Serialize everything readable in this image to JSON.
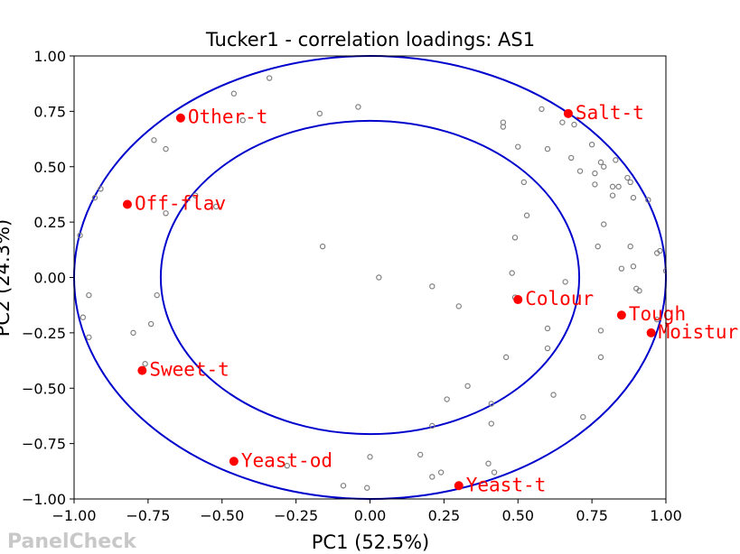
{
  "chart_data": {
    "type": "scatter",
    "title": "Tucker1 - correlation loadings: AS1",
    "xlabel": "PC1 (52.5%)",
    "ylabel": "PC2 (24.3%)",
    "xlim": [
      -1.0,
      1.0
    ],
    "ylim": [
      -1.0,
      1.0
    ],
    "x_ticks": [
      "−1.00",
      "−0.75",
      "−0.50",
      "−0.25",
      "0.00",
      "0.25",
      "0.50",
      "0.75",
      "1.00"
    ],
    "y_ticks": [
      "−1.00",
      "−0.75",
      "−0.50",
      "−0.25",
      "0.00",
      "0.25",
      "0.50",
      "0.75",
      "1.00"
    ],
    "x_tick_values": [
      -1.0,
      -0.75,
      -0.5,
      -0.25,
      0.0,
      0.25,
      0.5,
      0.75,
      1.0
    ],
    "y_tick_values": [
      -1.0,
      -0.75,
      -0.5,
      -0.25,
      0.0,
      0.25,
      0.5,
      0.75,
      1.0
    ],
    "circles": [
      {
        "radius": 1.0,
        "color": "#0000cc"
      },
      {
        "radius": 0.7071,
        "color": "#0000cc"
      }
    ],
    "grid": false,
    "highlighted": {
      "color": "#ff0000",
      "points": [
        {
          "label": "Other-t",
          "x": -0.64,
          "y": 0.72
        },
        {
          "label": "Salt-t",
          "x": 0.67,
          "y": 0.74
        },
        {
          "label": "Off-flav",
          "x": -0.82,
          "y": 0.33
        },
        {
          "label": "Colour",
          "x": 0.5,
          "y": -0.1
        },
        {
          "label": "Tough",
          "x": 0.85,
          "y": -0.17
        },
        {
          "label": "Moistur",
          "x": 0.95,
          "y": -0.25
        },
        {
          "label": "Sweet-t",
          "x": -0.77,
          "y": -0.42
        },
        {
          "label": "Yeast-od",
          "x": -0.46,
          "y": -0.83
        },
        {
          "label": "Yeast-t",
          "x": 0.3,
          "y": -0.94
        }
      ]
    },
    "assessors": {
      "color": "#808080",
      "points": [
        [
          -0.46,
          0.83
        ],
        [
          -0.34,
          0.9
        ],
        [
          -0.04,
          0.77
        ],
        [
          -0.17,
          0.74
        ],
        [
          -0.43,
          0.71
        ],
        [
          -0.73,
          0.62
        ],
        [
          -0.69,
          0.58
        ],
        [
          -0.91,
          0.4
        ],
        [
          -0.93,
          0.36
        ],
        [
          -0.59,
          0.37
        ],
        [
          -0.52,
          0.32
        ],
        [
          -0.69,
          0.29
        ],
        [
          -0.98,
          0.19
        ],
        [
          -0.16,
          0.14
        ],
        [
          0.03,
          0.0
        ],
        [
          0.21,
          -0.04
        ],
        [
          0.3,
          -0.13
        ],
        [
          -0.72,
          -0.08
        ],
        [
          -0.95,
          -0.08
        ],
        [
          -0.97,
          -0.18
        ],
        [
          -0.74,
          -0.21
        ],
        [
          -0.8,
          -0.25
        ],
        [
          -0.95,
          -0.27
        ],
        [
          -0.76,
          -0.39
        ],
        [
          0.58,
          0.76
        ],
        [
          0.45,
          0.7
        ],
        [
          0.45,
          0.68
        ],
        [
          0.65,
          0.7
        ],
        [
          0.69,
          0.69
        ],
        [
          0.5,
          0.59
        ],
        [
          0.6,
          0.58
        ],
        [
          0.68,
          0.54
        ],
        [
          0.71,
          0.48
        ],
        [
          0.75,
          0.6
        ],
        [
          0.78,
          0.52
        ],
        [
          0.79,
          0.5
        ],
        [
          0.76,
          0.47
        ],
        [
          0.76,
          0.42
        ],
        [
          0.82,
          0.41
        ],
        [
          0.84,
          0.41
        ],
        [
          0.82,
          0.37
        ],
        [
          0.83,
          0.53
        ],
        [
          0.87,
          0.45
        ],
        [
          0.88,
          0.43
        ],
        [
          0.89,
          0.36
        ],
        [
          0.94,
          0.35
        ],
        [
          0.52,
          0.43
        ],
        [
          0.53,
          0.28
        ],
        [
          0.49,
          0.18
        ],
        [
          0.79,
          0.24
        ],
        [
          0.77,
          0.14
        ],
        [
          0.88,
          0.14
        ],
        [
          0.97,
          0.11
        ],
        [
          0.98,
          0.12
        ],
        [
          0.89,
          0.05
        ],
        [
          0.85,
          0.04
        ],
        [
          1.0,
          0.03
        ],
        [
          0.48,
          0.02
        ],
        [
          0.66,
          -0.02
        ],
        [
          0.49,
          -0.09
        ],
        [
          0.9,
          -0.05
        ],
        [
          0.91,
          -0.06
        ],
        [
          0.97,
          -0.19
        ],
        [
          0.6,
          -0.23
        ],
        [
          0.78,
          -0.24
        ],
        [
          0.6,
          -0.32
        ],
        [
          0.46,
          -0.36
        ],
        [
          0.78,
          -0.36
        ],
        [
          0.33,
          -0.49
        ],
        [
          0.26,
          -0.55
        ],
        [
          0.41,
          -0.57
        ],
        [
          0.62,
          -0.53
        ],
        [
          0.41,
          -0.66
        ],
        [
          0.72,
          -0.63
        ],
        [
          0.21,
          -0.67
        ],
        [
          0.17,
          -0.8
        ],
        [
          0.4,
          -0.84
        ],
        [
          0.42,
          -0.88
        ],
        [
          0.21,
          -0.9
        ],
        [
          0.24,
          -0.88
        ],
        [
          -0.28,
          -0.85
        ],
        [
          0.0,
          -0.81
        ],
        [
          -0.09,
          -0.94
        ],
        [
          -0.01,
          -0.95
        ]
      ]
    }
  },
  "watermark": "PanelCheck"
}
